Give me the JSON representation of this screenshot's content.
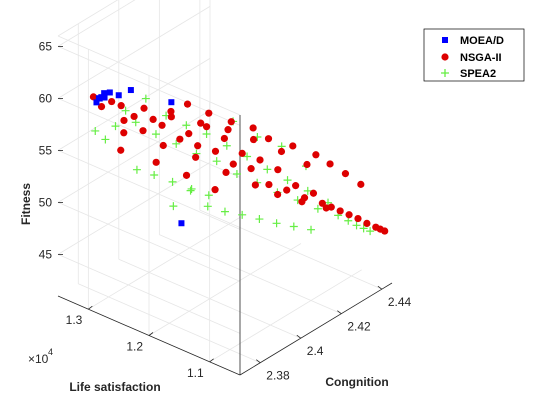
{
  "chart_data": {
    "type": "scatter",
    "projection": "3d",
    "xlabel": "Congnition",
    "ylabel": "Life satisfaction",
    "zlabel": "Fitness",
    "y_exponent_label": "×10",
    "y_exponent_power": "4",
    "xlim": [
      2.37,
      2.445
    ],
    "ylim": [
      10500,
      13500
    ],
    "zlim": [
      41,
      66
    ],
    "xticks": [
      "2.38",
      "2.4",
      "2.42",
      "2.44"
    ],
    "yticks": [
      "1.1",
      "1.2",
      "1.3"
    ],
    "zticks": [
      "45",
      "50",
      "55",
      "60",
      "65"
    ],
    "grid": true,
    "legend_position": "top-right",
    "series": [
      {
        "name": "MOEA/D",
        "marker": "square",
        "color": "#0000ff",
        "points": [
          [
            2.38,
            13200,
            59.2
          ],
          [
            2.381,
            13180,
            59.5
          ],
          [
            2.38,
            13160,
            59.7
          ],
          [
            2.382,
            13140,
            60.0
          ],
          [
            2.38,
            13120,
            59.9
          ],
          [
            2.381,
            13100,
            59.8
          ],
          [
            2.383,
            13080,
            60.1
          ],
          [
            2.385,
            13000,
            59.8
          ],
          [
            2.388,
            12900,
            60.2
          ],
          [
            2.396,
            12500,
            59.1
          ],
          [
            2.389,
            12100,
            49.3
          ]
        ]
      },
      {
        "name": "NSGA-II",
        "marker": "circle",
        "color": "#dd0000",
        "points": [
          [
            2.38,
            13250,
            59.6
          ],
          [
            2.381,
            13150,
            58.8
          ],
          [
            2.383,
            13050,
            59.3
          ],
          [
            2.385,
            12960,
            58.9
          ],
          [
            2.384,
            12880,
            57.8
          ],
          [
            2.386,
            12780,
            58.2
          ],
          [
            2.388,
            12700,
            56.8
          ],
          [
            2.39,
            12600,
            57.9
          ],
          [
            2.392,
            12520,
            57.3
          ],
          [
            2.394,
            12440,
            58.6
          ],
          [
            2.396,
            12360,
            55.9
          ],
          [
            2.398,
            12280,
            56.4
          ],
          [
            2.4,
            12200,
            55.2
          ],
          [
            2.402,
            12120,
            57.0
          ],
          [
            2.404,
            12040,
            54.6
          ],
          [
            2.406,
            11960,
            55.8
          ],
          [
            2.408,
            11880,
            53.3
          ],
          [
            2.41,
            11800,
            54.3
          ],
          [
            2.412,
            11720,
            52.8
          ],
          [
            2.414,
            11640,
            53.6
          ],
          [
            2.416,
            11560,
            51.2
          ],
          [
            2.418,
            11480,
            52.6
          ],
          [
            2.42,
            11400,
            50.6
          ],
          [
            2.422,
            11320,
            51.0
          ],
          [
            2.424,
            11240,
            49.8
          ],
          [
            2.426,
            11160,
            50.2
          ],
          [
            2.428,
            11080,
            49.2
          ],
          [
            2.43,
            11000,
            48.8
          ],
          [
            2.432,
            10920,
            48.4
          ],
          [
            2.434,
            10840,
            48.0
          ],
          [
            2.436,
            10760,
            47.6
          ],
          [
            2.438,
            10680,
            47.1
          ],
          [
            2.44,
            10600,
            46.7
          ],
          [
            2.441,
            10560,
            46.5
          ],
          [
            2.442,
            10520,
            46.3
          ],
          [
            2.392,
            12100,
            60.4
          ],
          [
            2.398,
            11950,
            59.2
          ],
          [
            2.404,
            11780,
            58.1
          ],
          [
            2.41,
            11620,
            57.2
          ],
          [
            2.414,
            11500,
            56.0
          ],
          [
            2.42,
            11300,
            55.1
          ],
          [
            2.426,
            11120,
            54.0
          ],
          [
            2.43,
            11020,
            52.9
          ],
          [
            2.434,
            10900,
            51.8
          ],
          [
            2.438,
            10780,
            50.6
          ],
          [
            2.386,
            12950,
            56.2
          ],
          [
            2.395,
            12600,
            54.8
          ],
          [
            2.402,
            12300,
            53.6
          ],
          [
            2.408,
            12000,
            52.2
          ],
          [
            2.415,
            11750,
            50.8
          ],
          [
            2.42,
            11550,
            49.8
          ],
          [
            2.426,
            11350,
            48.9
          ],
          [
            2.432,
            11150,
            48.1
          ],
          [
            2.387,
            12650,
            59.2
          ],
          [
            2.393,
            12400,
            58.3
          ],
          [
            2.4,
            12150,
            57.5
          ],
          [
            2.406,
            11900,
            56.8
          ],
          [
            2.412,
            11680,
            55.7
          ],
          [
            2.418,
            11420,
            54.5
          ],
          [
            2.424,
            11200,
            53.1
          ],
          [
            2.383,
            12900,
            55.0
          ],
          [
            2.39,
            12550,
            53.9
          ],
          [
            2.396,
            12250,
            52.7
          ],
          [
            2.402,
            11980,
            51.3
          ]
        ]
      },
      {
        "name": "SPEA2",
        "marker": "plus",
        "color": "#66ee44",
        "points": [
          [
            2.38,
            13220,
            56.4
          ],
          [
            2.382,
            13120,
            55.6
          ],
          [
            2.384,
            13020,
            56.9
          ],
          [
            2.386,
            12920,
            58.4
          ],
          [
            2.388,
            12820,
            57.3
          ],
          [
            2.39,
            12720,
            59.6
          ],
          [
            2.392,
            12620,
            56.2
          ],
          [
            2.394,
            12520,
            58.0
          ],
          [
            2.396,
            12420,
            55.3
          ],
          [
            2.398,
            12320,
            57.1
          ],
          [
            2.4,
            12220,
            54.4
          ],
          [
            2.402,
            12120,
            56.3
          ],
          [
            2.404,
            12020,
            53.7
          ],
          [
            2.406,
            11920,
            55.2
          ],
          [
            2.408,
            11820,
            52.5
          ],
          [
            2.41,
            11720,
            54.2
          ],
          [
            2.412,
            11620,
            51.7
          ],
          [
            2.414,
            11520,
            53.0
          ],
          [
            2.416,
            11420,
            50.8
          ],
          [
            2.418,
            11320,
            52.0
          ],
          [
            2.42,
            11220,
            50.1
          ],
          [
            2.422,
            11120,
            51.0
          ],
          [
            2.424,
            11020,
            49.3
          ],
          [
            2.426,
            10920,
            49.9
          ],
          [
            2.428,
            10820,
            48.7
          ],
          [
            2.43,
            10720,
            48.2
          ],
          [
            2.432,
            10650,
            47.7
          ],
          [
            2.434,
            10600,
            47.3
          ],
          [
            2.436,
            10560,
            46.9
          ],
          [
            2.391,
            12300,
            50.2
          ],
          [
            2.395,
            12150,
            51.6
          ],
          [
            2.399,
            12000,
            50.0
          ],
          [
            2.403,
            11850,
            49.4
          ],
          [
            2.407,
            11700,
            49.0
          ],
          [
            2.411,
            11550,
            48.5
          ],
          [
            2.415,
            11400,
            48.0
          ],
          [
            2.419,
            11250,
            47.6
          ],
          [
            2.423,
            11100,
            47.2
          ],
          [
            2.385,
            12700,
            53.4
          ],
          [
            2.389,
            12550,
            52.8
          ],
          [
            2.393,
            12380,
            52.1
          ],
          [
            2.397,
            12200,
            51.4
          ],
          [
            2.401,
            12050,
            50.7
          ],
          [
            2.407,
            11850,
            57.6
          ],
          [
            2.413,
            11650,
            55.9
          ],
          [
            2.419,
            11450,
            54.8
          ],
          [
            2.425,
            11250,
            52.7
          ]
        ]
      }
    ]
  }
}
